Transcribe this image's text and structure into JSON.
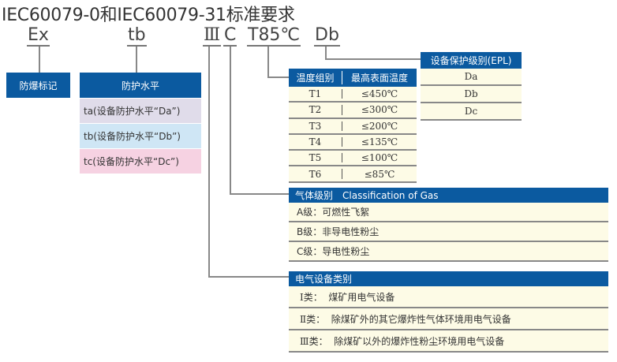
{
  "title": "IEC60079-0和IEC60079-31标准要求",
  "codes": {
    "ex": "Ex",
    "tb": "tb",
    "group": "Ⅲ",
    "gas": "C",
    "temp": "T85℃",
    "epl": "Db"
  },
  "explosion_mark": {
    "header": "防爆标记"
  },
  "protection_level": {
    "header": "防护水平",
    "rows": [
      {
        "label": "ta(设备防护水平“Da”)",
        "color": "#e0dcea"
      },
      {
        "label": "tb(设备防护水平“Db”)",
        "color": "#cfe6f5"
      },
      {
        "label": "tc(设备防护水平“Dc”)",
        "color": "#f6d2e2"
      }
    ]
  },
  "temperature": {
    "headers": [
      "温度组别",
      "最高表面温度"
    ],
    "rows": [
      [
        "T1",
        "≤450℃"
      ],
      [
        "T2",
        "≤300℃"
      ],
      [
        "T3",
        "≤200℃"
      ],
      [
        "T4",
        "≤135℃"
      ],
      [
        "T5",
        "≤100℃"
      ],
      [
        "T6",
        "≤85℃"
      ]
    ]
  },
  "epl": {
    "header": "设备保护级别(EPL)",
    "rows": [
      "Da",
      "Db",
      "Dc"
    ]
  },
  "gas": {
    "header_cn": "气体级别",
    "header_en": "Classification of Gas",
    "rows": [
      "A级：可燃性飞絮",
      "B级：非导电性粉尘",
      "C级：导电性粉尘"
    ]
  },
  "equipment": {
    "header": "电气设备类别",
    "rows": [
      "Ⅰ类：  煤矿用电气设备",
      "Ⅱ类：  除煤矿外的其它爆炸性气体环境用电气设备",
      "Ⅲ类：  除煤矿以外的爆炸性粉尘环境用电气设备"
    ]
  },
  "colors": {
    "header_blue": "#0b5aa0",
    "row_bg": "#fdfbe6"
  }
}
